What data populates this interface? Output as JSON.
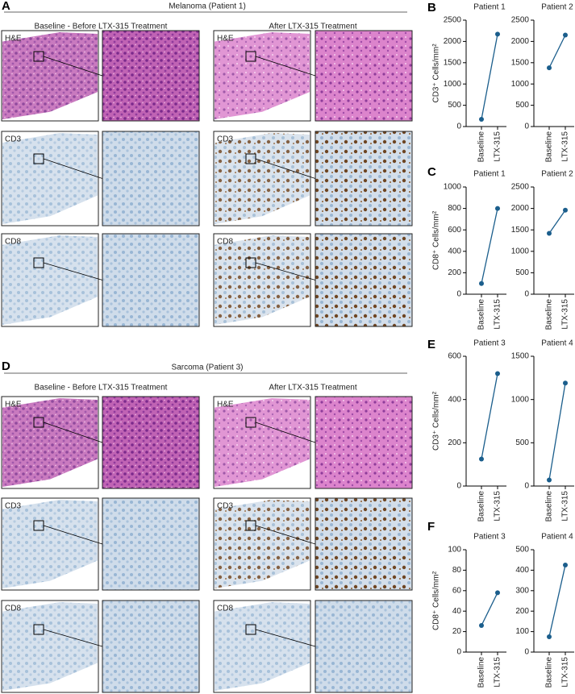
{
  "panel_labels": [
    "A",
    "B",
    "C",
    "D",
    "E",
    "F"
  ],
  "histology": [
    {
      "title": "Melanoma (Patient 1)",
      "baseline_heading": "Baseline - Before LTX-315 Treatment",
      "after_heading": "After LTX-315 Treatment",
      "stains": [
        "H&E",
        "CD3",
        "CD8"
      ]
    },
    {
      "title": "Sarcoma (Patient 3)",
      "baseline_heading": "Baseline - Before LTX-315 Treatment",
      "after_heading": "After LTX-315 Treatment",
      "stains": [
        "H&E",
        "CD3",
        "CD8"
      ]
    }
  ],
  "chart_data": [
    {
      "type": "line",
      "title": "Patient 1",
      "ylabel": "CD3⁺ Cells/mm²",
      "categories": [
        "Baseline",
        "LTX-315"
      ],
      "series": [
        {
          "color": "#1b5e8c",
          "values": [
            170,
            2170
          ]
        }
      ],
      "ylim": [
        0,
        2500
      ],
      "yticks": [
        0,
        500,
        1000,
        1500,
        2000,
        2500
      ]
    },
    {
      "type": "line",
      "title": "Patient 2",
      "categories": [
        "Baseline",
        "LTX-315"
      ],
      "series": [
        {
          "color": "#1b5e8c",
          "values": [
            1380,
            2150
          ]
        }
      ],
      "ylim": [
        0,
        2500
      ],
      "yticks": [
        0,
        500,
        1000,
        1500,
        2000,
        2500
      ]
    },
    {
      "type": "line",
      "title": "Patient 1",
      "ylabel": "CD8⁺ Cells/mm²",
      "categories": [
        "Baseline",
        "LTX-315"
      ],
      "series": [
        {
          "color": "#1b5e8c",
          "values": [
            100,
            800
          ]
        }
      ],
      "ylim": [
        0,
        1000
      ],
      "yticks": [
        0,
        200,
        400,
        600,
        800,
        1000
      ]
    },
    {
      "type": "line",
      "title": "Patient 2",
      "categories": [
        "Baseline",
        "LTX-315"
      ],
      "series": [
        {
          "color": "#1b5e8c",
          "values": [
            1420,
            1960
          ]
        }
      ],
      "ylim": [
        0,
        2500
      ],
      "yticks": [
        0,
        500,
        1000,
        1500,
        2000,
        2500
      ]
    },
    {
      "type": "line",
      "title": "Patient 3",
      "ylabel": "CD3⁺ Cells/mm²",
      "categories": [
        "Baseline",
        "LTX-315"
      ],
      "series": [
        {
          "color": "#1b5e8c",
          "values": [
            125,
            520
          ]
        }
      ],
      "ylim": [
        0,
        600
      ],
      "yticks": [
        0,
        200,
        400,
        600
      ]
    },
    {
      "type": "line",
      "title": "Patient 4",
      "categories": [
        "Baseline",
        "LTX-315"
      ],
      "series": [
        {
          "color": "#1b5e8c",
          "values": [
            70,
            1190
          ]
        }
      ],
      "ylim": [
        0,
        1500
      ],
      "yticks": [
        0,
        500,
        1000,
        1500
      ]
    },
    {
      "type": "line",
      "title": "Patient 3",
      "ylabel": "CD8⁺ Cells/mm²",
      "categories": [
        "Baseline",
        "LTX-315"
      ],
      "series": [
        {
          "color": "#1b5e8c",
          "values": [
            26,
            58
          ]
        }
      ],
      "ylim": [
        0,
        100
      ],
      "yticks": [
        0,
        20,
        40,
        60,
        80,
        100
      ]
    },
    {
      "type": "line",
      "title": "Patient 4",
      "categories": [
        "Baseline",
        "LTX-315"
      ],
      "series": [
        {
          "color": "#1b5e8c",
          "values": [
            75,
            425
          ]
        }
      ],
      "ylim": [
        0,
        500
      ],
      "yticks": [
        0,
        100,
        200,
        300,
        400,
        500
      ]
    }
  ]
}
